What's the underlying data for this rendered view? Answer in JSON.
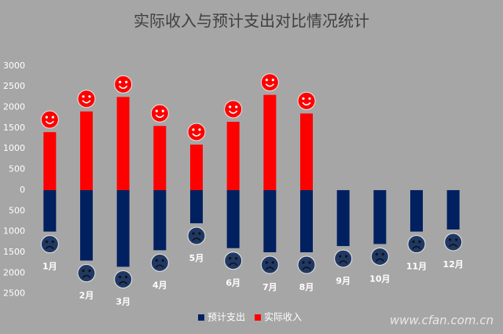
{
  "chart_data": {
    "type": "bar",
    "title": "实际收入与预计支出对比情况统计",
    "categories": [
      "1月",
      "2月",
      "3月",
      "4月",
      "5月",
      "6月",
      "7月",
      "8月",
      "9月",
      "10月",
      "11月",
      "12月"
    ],
    "series": [
      {
        "name": "预计支出",
        "color": "#002060",
        "values": [
          -1000,
          -1700,
          -1850,
          -1450,
          -800,
          -1400,
          -1500,
          -1500,
          -1350,
          -1300,
          -1000,
          -950
        ]
      },
      {
        "name": "实际收入",
        "color": "#ff0000",
        "values": [
          1400,
          1900,
          2250,
          1550,
          1100,
          1650,
          2300,
          1850,
          null,
          null,
          null,
          null
        ]
      }
    ],
    "ylim": [
      -2600,
      3300
    ],
    "yticks": [
      {
        "value": -2500,
        "label": "2500"
      },
      {
        "value": -2000,
        "label": "2000"
      },
      {
        "value": -1500,
        "label": "1500"
      },
      {
        "value": -1000,
        "label": "1000"
      },
      {
        "value": -500,
        "label": "500"
      },
      0,
      500,
      1000,
      1500,
      2000,
      2500,
      3000
    ],
    "grid": false,
    "legend": "bottom",
    "watermark": "www.cfan.com.cn"
  }
}
